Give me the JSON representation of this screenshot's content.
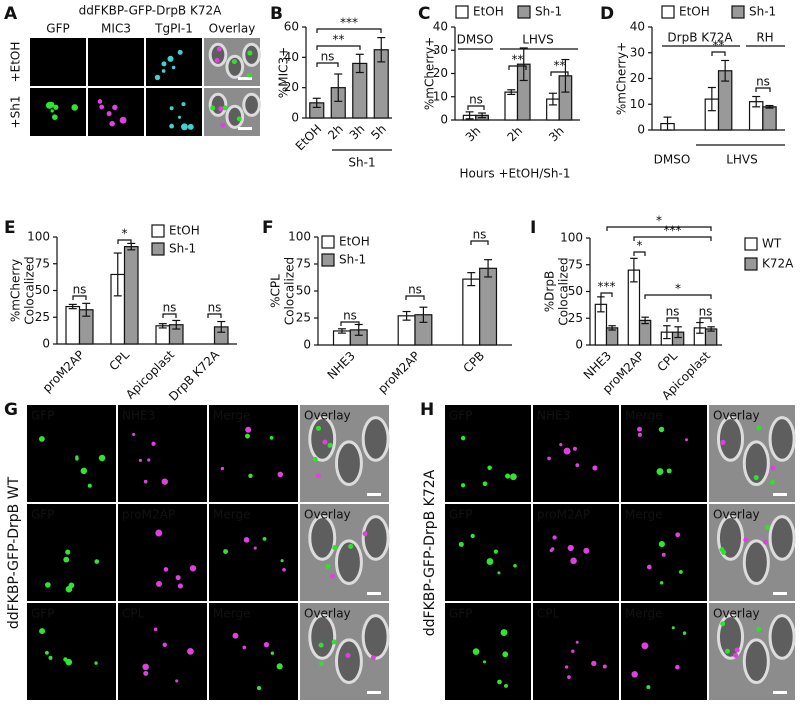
{
  "chart_data": [
    {
      "type": "bar",
      "label": "B",
      "ylabel": [
        "%MIC3+"
      ],
      "categories": [
        "EtOH",
        "2h",
        "3h",
        "5h"
      ],
      "values": [
        10,
        20,
        36,
        45
      ],
      "errors": [
        3,
        9,
        6,
        8
      ],
      "color": "#999999",
      "ylim": [
        0,
        60
      ],
      "yticks": [
        0,
        20,
        40,
        60
      ],
      "group_labels": [
        "Sh-1"
      ],
      "significance": [
        "ns",
        "**",
        "***"
      ]
    },
    {
      "type": "bar",
      "label": "C",
      "ylabel": [
        "%mCherry+"
      ],
      "xlabel": "Hours +EtOH/Sh-1",
      "categories": [
        "3h",
        "2h",
        "3h"
      ],
      "series": [
        {
          "name": "EtOH",
          "color": "#ffffff",
          "values": [
            2,
            12,
            9
          ],
          "errors": [
            1.5,
            1,
            2.5
          ]
        },
        {
          "name": "Sh-1",
          "color": "#999999",
          "values": [
            2,
            24,
            19
          ],
          "errors": [
            1,
            7,
            7
          ]
        }
      ],
      "ylim": [
        0,
        40
      ],
      "yticks": [
        0,
        10,
        20,
        30,
        40
      ],
      "group_labels": [
        "DMSO",
        "LHVS"
      ],
      "significance": [
        "ns",
        "**",
        "**"
      ]
    },
    {
      "type": "bar",
      "label": "D",
      "ylabel": [
        "%mCherry+"
      ],
      "categories": [
        null,
        null,
        null
      ],
      "series": [
        {
          "name": "EtOH",
          "color": "#ffffff",
          "values": [
            2.5,
            12,
            11
          ],
          "errors": [
            2.5,
            4.5,
            2
          ]
        },
        {
          "name": "Sh-1",
          "color": "#999999",
          "values": [
            null,
            23,
            9
          ],
          "errors": [
            null,
            4,
            0.5
          ]
        }
      ],
      "ylim": [
        0,
        40
      ],
      "yticks": [
        0,
        10,
        20,
        30,
        40
      ],
      "group_labels": [
        "DrpB K72A",
        "RH",
        "DMSO",
        "LHVS"
      ],
      "significance": [
        "**",
        "ns"
      ]
    },
    {
      "type": "bar",
      "label": "E",
      "ylabel": [
        "%mCherry",
        "Colocalized"
      ],
      "categories": [
        "proM2AP",
        "CPL",
        "Apicoplast",
        "DrpB K72A"
      ],
      "series": [
        {
          "name": "EtOH",
          "color": "#ffffff",
          "values": [
            35,
            65,
            17,
            null
          ],
          "errors": [
            2,
            20,
            2,
            null
          ]
        },
        {
          "name": "Sh-1",
          "color": "#999999",
          "values": [
            32,
            91,
            18,
            16
          ],
          "errors": [
            6,
            3,
            4,
            5
          ]
        }
      ],
      "ylim": [
        0,
        100
      ],
      "yticks": [
        0,
        25,
        50,
        75,
        100
      ],
      "significance": [
        "ns",
        "*",
        "ns",
        "ns"
      ]
    },
    {
      "type": "bar",
      "label": "F",
      "ylabel": [
        "%CPL",
        "Colocalized"
      ],
      "categories": [
        "NHE3",
        "proM2AP",
        "CPB"
      ],
      "series": [
        {
          "name": "EtOH",
          "color": "#ffffff",
          "values": [
            13,
            27,
            61
          ],
          "errors": [
            2,
            4,
            6
          ]
        },
        {
          "name": "Sh-1",
          "color": "#999999",
          "values": [
            14,
            28,
            71
          ],
          "errors": [
            5,
            7,
            8
          ]
        }
      ],
      "ylim": [
        0,
        100
      ],
      "yticks": [
        0,
        25,
        50,
        75,
        100
      ],
      "significance": [
        "ns",
        "ns",
        "ns"
      ]
    },
    {
      "type": "bar",
      "label": "I",
      "ylabel": [
        "%DrpB",
        "Colocalized"
      ],
      "categories": [
        "NHE3",
        "proM2AP",
        "CPL",
        "Apicoplast"
      ],
      "series": [
        {
          "name": "WT",
          "color": "#ffffff",
          "values": [
            38,
            70,
            12,
            16
          ],
          "errors": [
            7,
            11,
            6,
            5
          ]
        },
        {
          "name": "K72A",
          "color": "#999999",
          "values": [
            16,
            23,
            12,
            15
          ],
          "errors": [
            2,
            3,
            5,
            2
          ]
        }
      ],
      "ylim": [
        0,
        100
      ],
      "yticks": [
        0,
        25,
        50,
        75,
        100
      ],
      "significance": [
        "***",
        "*",
        "ns",
        "ns",
        "*",
        "***",
        "*"
      ]
    }
  ],
  "images": {
    "A": {
      "label": "A",
      "title": "ddFKBP-GFP-DrpB K72A",
      "columns": [
        "GFP",
        "MIC3",
        "TgPI-1",
        "Overlay"
      ],
      "rows": [
        "+EtOH",
        "+Sh1"
      ]
    },
    "G": {
      "label": "G",
      "side_label": "ddFKBP-GFP-DrpB WT",
      "rows": [
        [
          "GFP",
          "NHE3",
          "Merge",
          "Overlay"
        ],
        [
          "GFP",
          "proM2AP",
          "Merge",
          "Overlay"
        ],
        [
          "GFP",
          "CPL",
          "Merge",
          "Overlay"
        ]
      ]
    },
    "H": {
      "label": "H",
      "side_label": "ddFKBP-GFP-DrpB K72A",
      "rows": [
        [
          "GFP",
          "NHE3",
          "Merge",
          "Overlay"
        ],
        [
          "GFP",
          "proM2AP",
          "Merge",
          "Overlay"
        ],
        [
          "GFP",
          "CPL",
          "Merge",
          "Overlay"
        ]
      ]
    }
  }
}
